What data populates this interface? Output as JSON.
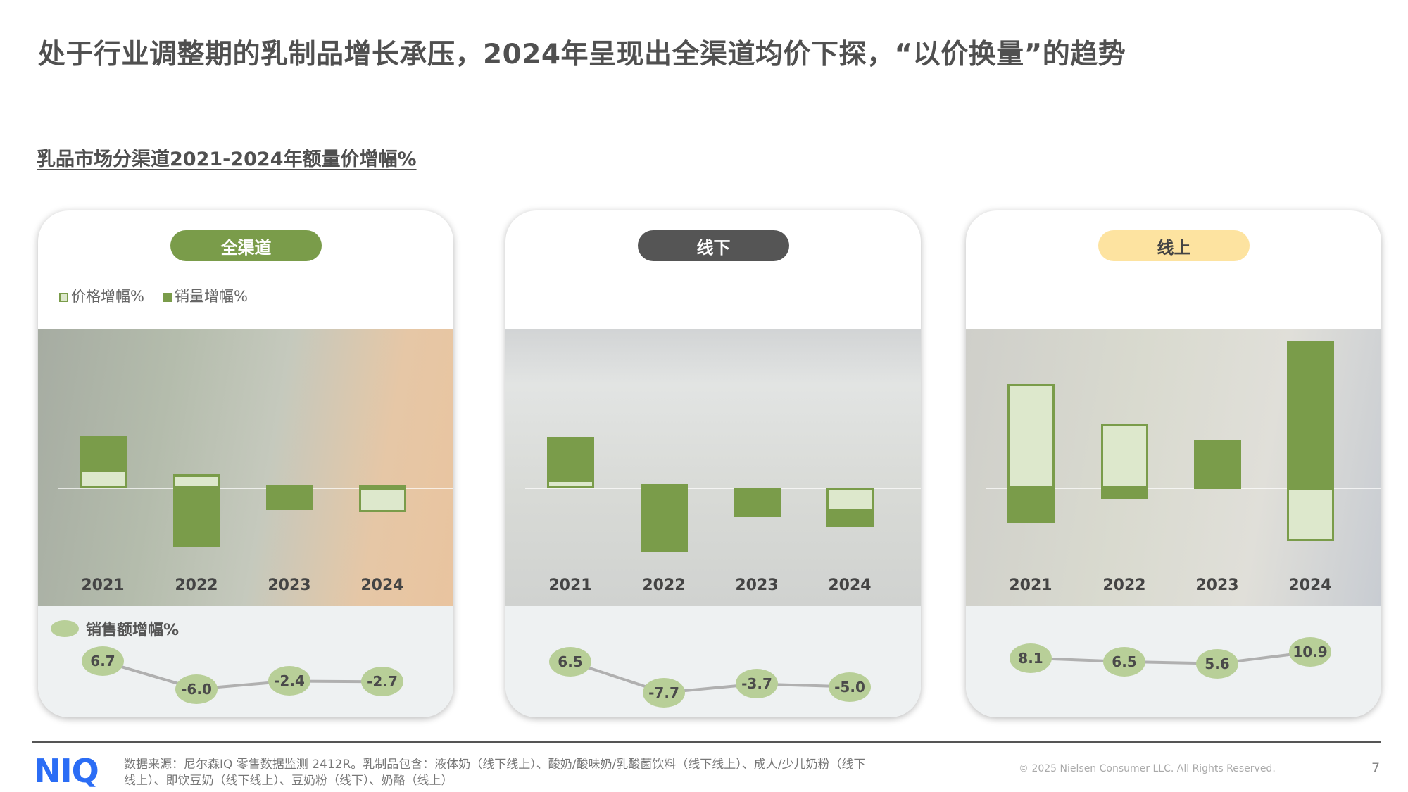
{
  "title": "处于行业调整期的乳制品增长承压，2024年呈现出全渠道均价下探，“以价换量”的趋势",
  "subtitle": "乳品市场分渠道2021-2024年额量价增幅%",
  "legend": {
    "price": "价格增幅%",
    "volume": "销量增幅%",
    "sales": "销售额增幅%"
  },
  "colors": {
    "volume": "#7a9c4a",
    "price_fill": "#dde8cc",
    "sales": "#b8cf98"
  },
  "chart_data": [
    {
      "type": "bar",
      "channel": "全渠道",
      "pill_color": "#7a9c4a",
      "pill_text_color": "#ffffff",
      "categories": [
        "2021",
        "2022",
        "2023",
        "2024"
      ],
      "series": [
        {
          "name": "价格增幅%",
          "values": [
            2.3,
            1.7,
            0.4,
            -3.1
          ]
        },
        {
          "name": "销量增幅%",
          "values": [
            4.4,
            -7.6,
            -2.8,
            0.4
          ]
        },
        {
          "name": "销售额增幅%",
          "values": [
            6.7,
            -6.0,
            -2.4,
            -2.7
          ]
        }
      ]
    },
    {
      "type": "bar",
      "channel": "线下",
      "pill_color": "#555555",
      "pill_text_color": "#ffffff",
      "categories": [
        "2021",
        "2022",
        "2023",
        "2024"
      ],
      "series": [
        {
          "name": "价格增幅%",
          "values": [
            1.1,
            0.5,
            0.0,
            -3.0
          ]
        },
        {
          "name": "销量增幅%",
          "values": [
            5.4,
            -8.2,
            -3.7,
            -2.0
          ]
        },
        {
          "name": "销售额增幅%",
          "values": [
            6.5,
            -7.7,
            -3.7,
            -5.0
          ]
        }
      ]
    },
    {
      "type": "bar",
      "channel": "线上",
      "pill_color": "#fde3a0",
      "pill_text_color": "#444444",
      "categories": [
        "2021",
        "2022",
        "2023",
        "2024"
      ],
      "series": [
        {
          "name": "价格增幅%",
          "values": [
            12.2,
            7.5,
            0.3,
            -6.3
          ]
        },
        {
          "name": "销量增幅%",
          "values": [
            -4.1,
            -1.3,
            5.3,
            17.2
          ]
        },
        {
          "name": "销售额增幅%",
          "values": [
            8.1,
            6.5,
            5.6,
            10.9
          ]
        }
      ]
    }
  ],
  "footer": {
    "logo": "NIQ",
    "source": "数据来源：尼尔森IQ 零售数据监测 2412R。乳制品包含：液体奶（线下线上）、酸奶/酸味奶/乳酸菌饮料（线下线上）、成人/少儿奶粉（线下线上）、即饮豆奶（线下线上）、豆奶粉（线下）、奶酪（线上）",
    "copyright": "© 2025 Nielsen Consumer LLC. All Rights Reserved.",
    "page": "7"
  }
}
